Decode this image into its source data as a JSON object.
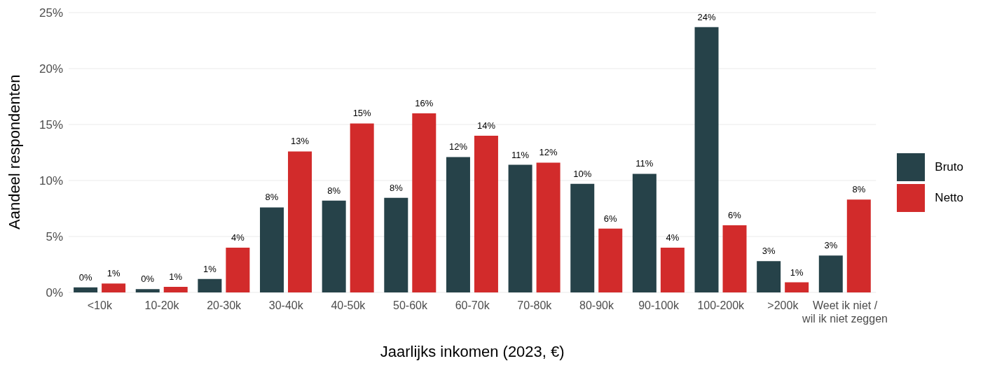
{
  "chart_data": {
    "type": "bar",
    "xlabel": "Jaarlijks inkomen (2023, €)",
    "ylabel": "Aandeel respondenten",
    "categories": [
      "<10k",
      "10-20k",
      "20-30k",
      "30-40k",
      "40-50k",
      "50-60k",
      "60-70k",
      "70-80k",
      "80-90k",
      "90-100k",
      "100-200k",
      ">200k",
      "Weet ik niet /\nwil ik niet zeggen"
    ],
    "series": [
      {
        "name": "Bruto",
        "color": "#264249",
        "values": [
          0.45,
          0.3,
          1.2,
          7.6,
          8.2,
          8.45,
          12.1,
          11.4,
          9.7,
          10.6,
          23.7,
          2.8,
          3.3
        ],
        "value_labels": [
          "0%",
          "0%",
          "1%",
          "8%",
          "8%",
          "8%",
          "12%",
          "11%",
          "10%",
          "11%",
          "24%",
          "3%",
          "3%"
        ]
      },
      {
        "name": "Netto",
        "color": "#d22b2b",
        "values": [
          0.8,
          0.5,
          4.0,
          12.6,
          15.1,
          16.0,
          14.0,
          11.6,
          5.7,
          4.0,
          6.0,
          0.9,
          8.3
        ],
        "value_labels": [
          "1%",
          "1%",
          "4%",
          "13%",
          "15%",
          "16%",
          "14%",
          "12%",
          "6%",
          "4%",
          "6%",
          "1%",
          "8%"
        ]
      }
    ],
    "ylim": [
      0,
      25
    ],
    "yticks": [
      {
        "value": 0,
        "label": "0%"
      },
      {
        "value": 5,
        "label": "5%"
      },
      {
        "value": 10,
        "label": "10%"
      },
      {
        "value": 15,
        "label": "15%"
      },
      {
        "value": 20,
        "label": "20%"
      },
      {
        "value": 25,
        "label": "25%"
      }
    ],
    "grid": "y",
    "legend": "right"
  }
}
